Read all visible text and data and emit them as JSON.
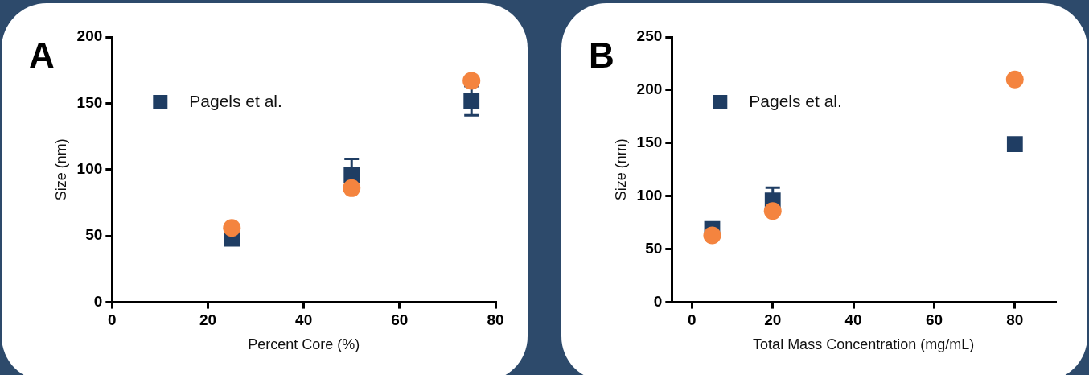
{
  "chart_data": [
    {
      "type": "scatter",
      "title": "A",
      "xlabel": "Percent Core (%)",
      "ylabel": "Size (nm)",
      "xlim": [
        0,
        80
      ],
      "xticks": [
        0,
        20,
        40,
        60,
        80
      ],
      "ylim": [
        0,
        200
      ],
      "yticks": [
        0,
        50,
        100,
        150,
        200
      ],
      "grid": false,
      "legend": "top left",
      "series": [
        {
          "color": "#f4843f",
          "marker": "circle",
          "x": [
            25,
            50,
            75
          ],
          "values": [
            56,
            86,
            167
          ]
        },
        {
          "name": "Pagels et al.",
          "color": "#1f3d63",
          "marker": "square",
          "x": [
            25,
            50,
            75
          ],
          "values": [
            48,
            96,
            152
          ],
          "errors": [
            null,
            12,
            11
          ]
        }
      ]
    },
    {
      "type": "scatter",
      "title": "B",
      "xlabel": "Total Mass Concentration (mg/mL)",
      "ylabel": "Size (nm)",
      "xlim": [
        -5,
        90
      ],
      "xticks": [
        0,
        20,
        40,
        60,
        80
      ],
      "ylim": [
        0,
        250
      ],
      "yticks": [
        0,
        50,
        100,
        150,
        200,
        250
      ],
      "grid": false,
      "legend": "top left",
      "series": [
        {
          "color": "#f4843f",
          "marker": "circle",
          "x": [
            5,
            20,
            80
          ],
          "values": [
            63,
            86,
            210
          ]
        },
        {
          "name": "Pagels et al.",
          "color": "#1f3d63",
          "marker": "square",
          "x": [
            5,
            20,
            80
          ],
          "values": [
            69,
            96,
            149
          ],
          "errors": [
            null,
            12,
            null
          ]
        }
      ]
    }
  ]
}
